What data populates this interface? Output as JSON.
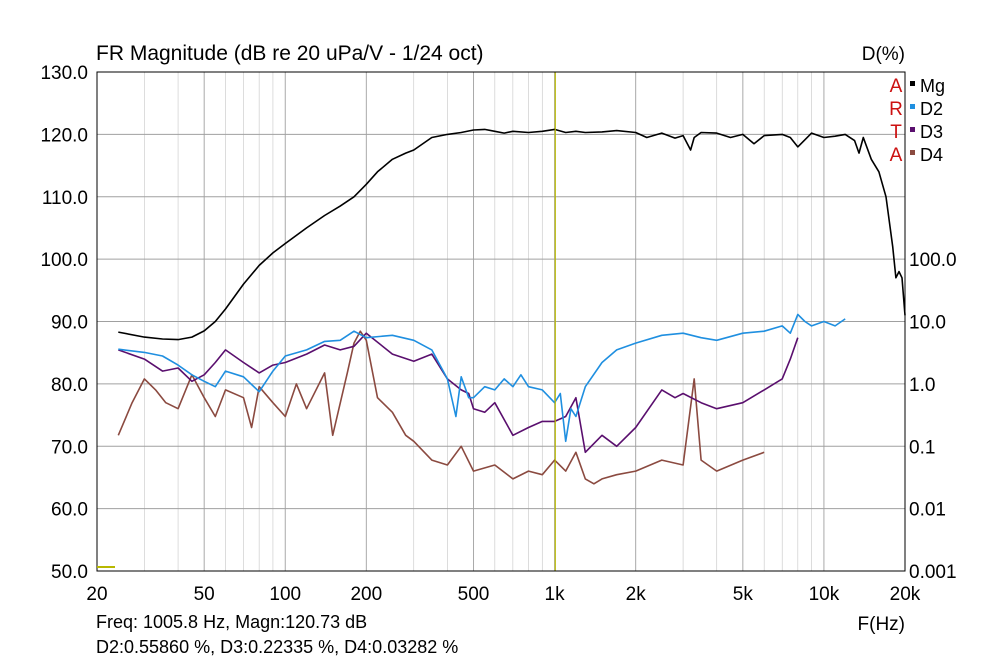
{
  "title": "FR Magnitude (dB re 20 uPa/V - 1/24 oct)",
  "right_axis_title": "D(%)",
  "x_axis_title": "F(Hz)",
  "brand_letters": [
    "A",
    "R",
    "T",
    "A"
  ],
  "readout": {
    "line1": "Freq: 1005.8 Hz, Magn:120.73 dB",
    "line2": "D2:0.55860 %, D3:0.22335 %, D4:0.03282 %"
  },
  "colors": {
    "Mg": "#000000",
    "D2": "#1f8fe0",
    "D3": "#5a0f6e",
    "D4": "#8b4a40",
    "cursor": "#b8b800",
    "grid": "#a0a0a0",
    "brand": "#cc1111"
  },
  "chart_data": {
    "type": "line",
    "x_scale": "log",
    "xlim": [
      20,
      20000
    ],
    "ylim": [
      50,
      130
    ],
    "y_ticks": [
      130,
      120,
      110,
      100,
      90,
      80,
      70,
      60,
      50
    ],
    "y_tick_labels": [
      "130.0",
      "120.0",
      "110.0",
      "100.0",
      "90.0",
      "80.0",
      "70.0",
      "60.0",
      "50.0"
    ],
    "x_ticks": [
      20,
      50,
      100,
      200,
      500,
      1000,
      2000,
      5000,
      10000,
      20000
    ],
    "x_tick_labels": [
      "20",
      "50",
      "100",
      "200",
      "500",
      "1k",
      "2k",
      "5k",
      "10k",
      "20k"
    ],
    "right_axis": {
      "scale": "log",
      "ticks": [
        100,
        10,
        1,
        0.1,
        0.01,
        0.001
      ],
      "tick_labels": [
        "100.0",
        "10.0",
        "1.0",
        "0.1",
        "0.01",
        "0.001"
      ]
    },
    "cursor_x": 1005.8,
    "grid": true,
    "legend": "top-right",
    "series": [
      {
        "name": "Mg",
        "axis": "left",
        "x": [
          24,
          30,
          35,
          40,
          45,
          50,
          55,
          60,
          70,
          80,
          90,
          100,
          120,
          140,
          160,
          180,
          200,
          220,
          250,
          280,
          300,
          350,
          400,
          450,
          500,
          550,
          600,
          650,
          700,
          800,
          900,
          1000,
          1100,
          1200,
          1300,
          1500,
          1700,
          2000,
          2200,
          2500,
          2800,
          3000,
          3200,
          3300,
          3500,
          4000,
          4500,
          5000,
          5500,
          6000,
          7000,
          7500,
          8000,
          9000,
          10000,
          11000,
          12000,
          13000,
          13500,
          14000,
          15000,
          16000,
          17000,
          18000,
          18500,
          19000,
          19500,
          20000
        ],
        "y": [
          88.3,
          87.5,
          87.2,
          87.1,
          87.5,
          88.5,
          90,
          92,
          96,
          99,
          101,
          102.5,
          105,
          107,
          108.5,
          110,
          112,
          114,
          116,
          117,
          117.5,
          119.5,
          120,
          120.3,
          120.7,
          120.8,
          120.5,
          120.2,
          120.5,
          120.3,
          120.5,
          120.8,
          120.3,
          120.5,
          120.3,
          120.4,
          120.6,
          120.3,
          119.5,
          120.2,
          119.4,
          119.8,
          117.5,
          119.5,
          120.3,
          120.2,
          119.5,
          120,
          118.5,
          119.8,
          120,
          119.5,
          118,
          120.2,
          119.5,
          119.7,
          120,
          119,
          117,
          119.5,
          116,
          114,
          110,
          102,
          97,
          98,
          97,
          91
        ]
      },
      {
        "name": "D2",
        "axis": "right",
        "x": [
          24,
          30,
          35,
          40,
          45,
          50,
          55,
          60,
          70,
          80,
          90,
          100,
          120,
          140,
          160,
          180,
          200,
          250,
          300,
          350,
          400,
          430,
          450,
          480,
          500,
          550,
          600,
          650,
          700,
          750,
          800,
          900,
          1000,
          1050,
          1100,
          1150,
          1200,
          1300,
          1500,
          1700,
          2000,
          2500,
          3000,
          3500,
          4000,
          5000,
          6000,
          7000,
          7500,
          8000,
          8500,
          9000,
          10000,
          11000,
          12000
        ],
        "y": [
          3.6,
          3.2,
          2.8,
          2.0,
          1.4,
          1.1,
          0.9,
          1.6,
          1.3,
          0.75,
          1.6,
          2.8,
          3.5,
          4.8,
          5.0,
          7.0,
          5.5,
          6.0,
          5.0,
          3.5,
          1.2,
          0.3,
          1.3,
          0.6,
          0.6,
          0.9,
          0.8,
          1.2,
          0.9,
          1.4,
          0.9,
          0.8,
          0.5,
          0.7,
          0.12,
          0.4,
          0.3,
          0.9,
          2.2,
          3.5,
          4.5,
          6.0,
          6.5,
          5.5,
          5.0,
          6.5,
          7.0,
          8.5,
          6.5,
          13.0,
          10.0,
          8.5,
          10.0,
          8.5,
          11.0
        ]
      },
      {
        "name": "D3",
        "axis": "right",
        "x": [
          24,
          30,
          35,
          40,
          45,
          50,
          55,
          60,
          70,
          80,
          90,
          100,
          120,
          140,
          160,
          180,
          200,
          250,
          300,
          350,
          400,
          450,
          480,
          500,
          550,
          600,
          700,
          800,
          900,
          1000,
          1100,
          1200,
          1300,
          1500,
          1700,
          2000,
          2500,
          2800,
          3000,
          3500,
          4000,
          5000,
          6000,
          7000,
          7500,
          8000
        ],
        "y": [
          3.5,
          2.5,
          1.6,
          1.8,
          1.1,
          1.4,
          2.2,
          3.5,
          2.2,
          1.5,
          2.0,
          2.2,
          3.0,
          4.2,
          3.5,
          4.0,
          6.5,
          3.0,
          2.3,
          3.0,
          1.2,
          0.8,
          0.7,
          0.4,
          0.35,
          0.5,
          0.15,
          0.2,
          0.25,
          0.25,
          0.3,
          0.6,
          0.08,
          0.15,
          0.1,
          0.2,
          0.8,
          0.6,
          0.7,
          0.5,
          0.4,
          0.5,
          0.8,
          1.2,
          2.5,
          5.5
        ]
      },
      {
        "name": "D4",
        "axis": "right",
        "x": [
          24,
          27,
          30,
          33,
          36,
          40,
          45,
          50,
          55,
          60,
          70,
          75,
          80,
          90,
          100,
          110,
          120,
          140,
          150,
          170,
          180,
          190,
          200,
          220,
          250,
          280,
          300,
          350,
          400,
          450,
          500,
          600,
          700,
          800,
          900,
          1000,
          1100,
          1200,
          1300,
          1400,
          1500,
          1700,
          2000,
          2500,
          3000,
          3300,
          3500,
          4000,
          5000,
          6000
        ],
        "y": [
          0.15,
          0.5,
          1.2,
          0.8,
          0.5,
          0.4,
          1.4,
          0.6,
          0.3,
          0.8,
          0.6,
          0.2,
          0.9,
          0.5,
          0.3,
          1.0,
          0.4,
          1.5,
          0.15,
          1.5,
          4.5,
          7.0,
          5.0,
          0.6,
          0.35,
          0.15,
          0.12,
          0.06,
          0.05,
          0.1,
          0.04,
          0.05,
          0.03,
          0.04,
          0.035,
          0.06,
          0.04,
          0.08,
          0.03,
          0.025,
          0.03,
          0.035,
          0.04,
          0.06,
          0.05,
          1.2,
          0.06,
          0.04,
          0.06,
          0.08
        ]
      }
    ]
  }
}
